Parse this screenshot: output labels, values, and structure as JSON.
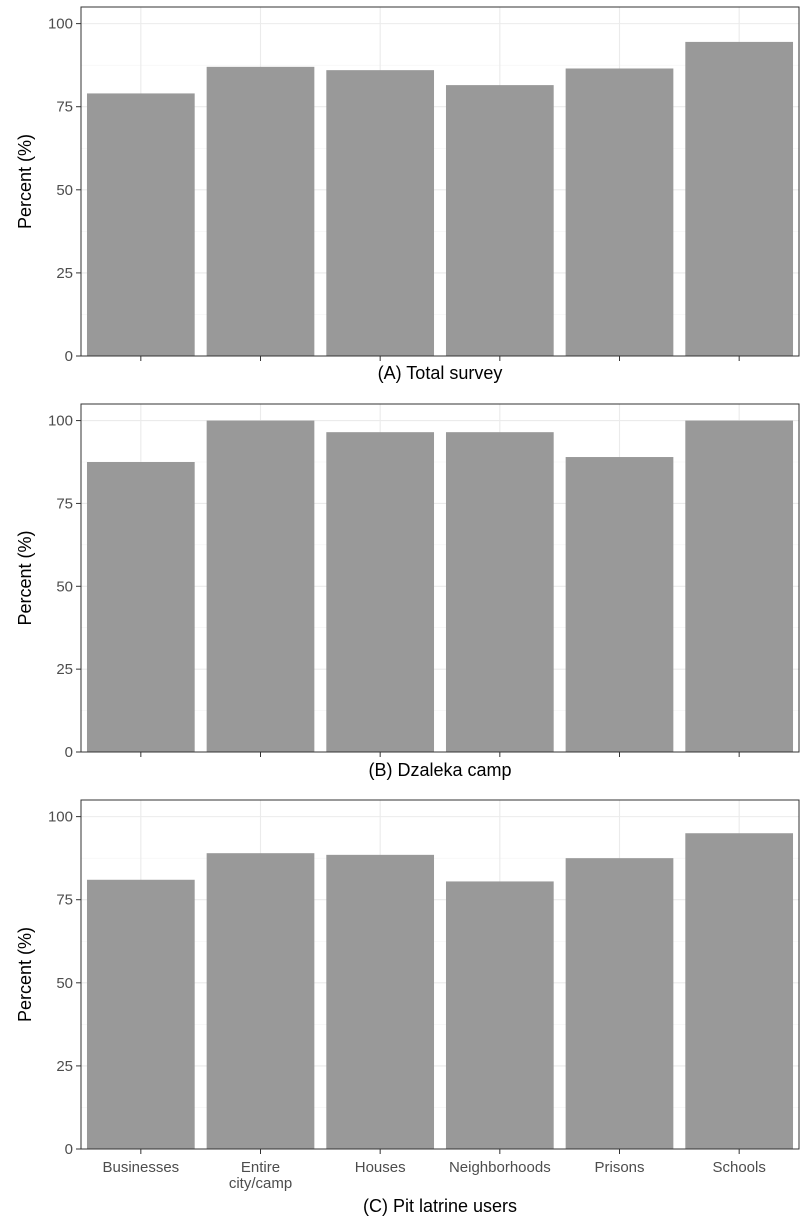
{
  "chart_data": [
    {
      "type": "bar",
      "title": "",
      "xlabel": "(A) Total survey",
      "ylabel": "Percent (%)",
      "ylim": [
        0,
        105
      ],
      "yticks": [
        "0",
        "25",
        "50",
        "75",
        "100"
      ],
      "categories": [
        "Businesses",
        "Entire city/camp",
        "Houses",
        "Neighborhoods",
        "Prisons",
        "Schools"
      ],
      "category_tick_labels": [],
      "values": [
        79,
        87,
        86,
        81.5,
        86.5,
        94.5
      ],
      "grid": true,
      "bar_color": "#999999"
    },
    {
      "type": "bar",
      "title": "",
      "xlabel": "(B) Dzaleka camp",
      "ylabel": "Percent (%)",
      "ylim": [
        0,
        105
      ],
      "yticks": [
        "0",
        "25",
        "50",
        "75",
        "100"
      ],
      "categories": [
        "Businesses",
        "Entire city/camp",
        "Houses",
        "Neighborhoods",
        "Prisons",
        "Schools"
      ],
      "category_tick_labels": [],
      "values": [
        87.5,
        100,
        96.5,
        96.5,
        89,
        100
      ],
      "grid": true,
      "bar_color": "#999999"
    },
    {
      "type": "bar",
      "title": "",
      "xlabel": "(C) Pit latrine users",
      "ylabel": "Percent (%)",
      "ylim": [
        0,
        105
      ],
      "yticks": [
        "0",
        "25",
        "50",
        "75",
        "100"
      ],
      "categories": [
        "Businesses",
        "Entire city/camp",
        "Houses",
        "Neighborhoods",
        "Prisons",
        "Schools"
      ],
      "category_tick_labels": [
        [
          "Businesses"
        ],
        [
          "Entire",
          "city/camp"
        ],
        [
          "Houses"
        ],
        [
          "Neighborhoods"
        ],
        [
          "Prisons"
        ],
        [
          "Schools"
        ]
      ],
      "values": [
        81,
        89,
        88.5,
        80.5,
        87.5,
        95
      ],
      "grid": true,
      "bar_color": "#999999"
    }
  ]
}
